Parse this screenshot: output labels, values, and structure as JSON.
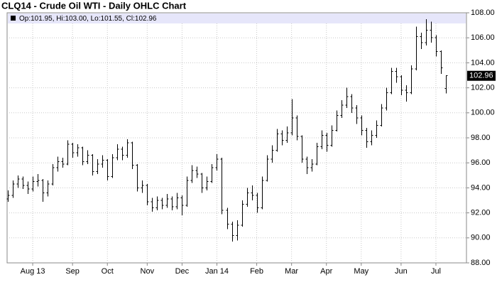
{
  "chart_data": {
    "type": "ohlc",
    "title": "CLQ14 - Crude Oil WTI - Daily OHLC Chart",
    "legend_text": "Op:101.95, Hi:103.00, Lo:101.55, Cl:102.96",
    "categories": [
      null,
      null,
      null,
      null,
      null,
      "Aug 13",
      null,
      null,
      null,
      null,
      null,
      null,
      null,
      "Sep",
      null,
      null,
      null,
      null,
      null,
      null,
      "Oct",
      null,
      null,
      null,
      null,
      null,
      null,
      null,
      "Nov",
      null,
      null,
      null,
      null,
      null,
      null,
      "Dec",
      null,
      null,
      null,
      null,
      null,
      null,
      "Jan 14",
      null,
      null,
      null,
      null,
      null,
      null,
      null,
      "Feb",
      null,
      null,
      null,
      null,
      null,
      null,
      "Mar",
      null,
      null,
      null,
      null,
      null,
      null,
      "Apr",
      null,
      null,
      null,
      null,
      null,
      null,
      "May",
      null,
      null,
      null,
      null,
      null,
      null,
      null,
      "Jun",
      null,
      null,
      null,
      null,
      null,
      null,
      "Jul",
      null,
      null
    ],
    "open": [
      93.1,
      93.4,
      94.3,
      94.7,
      94.2,
      93.9,
      94.5,
      94.6,
      93.6,
      94.3,
      95.6,
      96.1,
      95.9,
      97.5,
      96.8,
      97.2,
      96.1,
      96.6,
      95.3,
      95.9,
      96.2,
      94.9,
      96.4,
      97.1,
      96.6,
      97.6,
      95.8,
      94.0,
      94.2,
      92.9,
      92.4,
      93.0,
      92.6,
      93.1,
      92.5,
      93.2,
      92.6,
      94.6,
      95.4,
      95.1,
      94.0,
      94.5,
      95.6,
      96.3,
      92.2,
      91.1,
      90.2,
      91.0,
      92.7,
      93.6,
      93.4,
      92.4,
      94.6,
      96.3,
      97.0,
      98.3,
      97.8,
      98.4,
      99.6,
      98.1,
      96.3,
      95.6,
      95.9,
      97.3,
      98.2,
      97.4,
      98.6,
      99.8,
      100.6,
      101.3,
      100.4,
      99.6,
      98.6,
      97.7,
      98.2,
      99.0,
      100.4,
      101.6,
      103.3,
      102.9,
      101.8,
      101.6,
      103.5,
      106.1,
      105.6,
      106.6,
      106.0,
      104.9,
      101.95
    ],
    "high": [
      93.8,
      94.6,
      95.0,
      94.9,
      94.5,
      94.9,
      95.1,
      94.7,
      94.6,
      95.9,
      96.5,
      96.4,
      97.8,
      97.6,
      97.5,
      97.3,
      97.0,
      96.7,
      96.3,
      96.6,
      96.3,
      96.7,
      97.5,
      97.3,
      97.9,
      97.7,
      95.9,
      94.6,
      94.3,
      93.2,
      93.3,
      93.2,
      93.5,
      93.3,
      93.6,
      93.4,
      94.9,
      95.8,
      95.7,
      95.2,
      94.9,
      95.9,
      96.7,
      96.4,
      92.4,
      91.3,
      91.4,
      93.0,
      94.0,
      94.2,
      93.6,
      94.9,
      96.6,
      97.4,
      98.7,
      98.6,
      98.9,
      101.1,
      99.8,
      98.2,
      96.5,
      96.3,
      97.6,
      98.6,
      98.4,
      99.0,
      100.2,
      101.0,
      102.0,
      101.5,
      100.6,
      99.8,
      98.8,
      98.6,
      99.4,
      100.7,
      102.0,
      103.6,
      103.6,
      103.0,
      102.2,
      103.8,
      106.9,
      106.4,
      107.5,
      107.3,
      106.2,
      105.0,
      103.0
    ],
    "low": [
      92.9,
      93.2,
      94.0,
      93.9,
      93.5,
      93.7,
      94.1,
      92.9,
      93.3,
      94.2,
      95.3,
      95.6,
      95.8,
      96.4,
      96.5,
      95.8,
      95.9,
      95.0,
      95.1,
      95.6,
      94.6,
      94.8,
      96.2,
      96.2,
      96.4,
      95.5,
      93.7,
      93.6,
      92.6,
      92.1,
      92.2,
      92.3,
      92.4,
      92.2,
      92.3,
      91.8,
      92.5,
      94.4,
      94.8,
      93.6,
      93.8,
      94.4,
      95.4,
      91.9,
      90.7,
      89.7,
      89.8,
      90.9,
      92.5,
      93.0,
      92.0,
      92.3,
      94.5,
      96.0,
      96.9,
      97.4,
      97.6,
      98.2,
      97.8,
      96.0,
      95.1,
      95.3,
      95.8,
      97.1,
      96.9,
      97.3,
      98.5,
      99.6,
      100.4,
      100.0,
      99.1,
      98.2,
      97.2,
      97.4,
      98.0,
      98.9,
      100.2,
      101.5,
      102.4,
      101.4,
      100.9,
      101.5,
      103.4,
      105.1,
      105.4,
      105.6,
      104.5,
      103.1,
      101.55
    ],
    "close": [
      93.4,
      94.3,
      94.7,
      94.2,
      93.9,
      94.5,
      94.6,
      93.6,
      94.3,
      95.6,
      96.1,
      95.9,
      97.5,
      96.8,
      97.2,
      96.1,
      96.6,
      95.3,
      95.9,
      96.2,
      94.9,
      96.4,
      97.1,
      96.6,
      97.6,
      95.8,
      94.0,
      94.2,
      92.9,
      92.4,
      93.0,
      92.6,
      93.1,
      92.5,
      93.2,
      92.6,
      94.6,
      95.4,
      95.1,
      94.0,
      94.5,
      95.6,
      96.3,
      92.2,
      91.1,
      90.2,
      91.0,
      92.7,
      93.6,
      93.4,
      92.4,
      94.6,
      96.3,
      97.0,
      98.3,
      97.8,
      98.4,
      99.6,
      98.1,
      96.3,
      95.6,
      95.9,
      97.3,
      98.2,
      97.4,
      98.6,
      99.8,
      100.6,
      101.3,
      100.4,
      99.6,
      98.6,
      97.7,
      98.2,
      99.0,
      100.4,
      101.6,
      103.3,
      102.9,
      101.8,
      101.6,
      103.5,
      106.1,
      105.6,
      106.6,
      106.0,
      104.9,
      103.6,
      102.96
    ],
    "ylim": [
      88,
      108
    ],
    "yticks": [
      {
        "value": 88,
        "label": "88.00"
      },
      {
        "value": 90,
        "label": "90.00"
      },
      {
        "value": 92,
        "label": "92.00"
      },
      {
        "value": 94,
        "label": "94.00"
      },
      {
        "value": 96,
        "label": "96.00"
      },
      {
        "value": 98,
        "label": "98.00"
      },
      {
        "value": 100,
        "label": "100.00"
      },
      {
        "value": 102,
        "label": "102.00"
      },
      {
        "value": 104,
        "label": "104.00"
      },
      {
        "value": 106,
        "label": "106.00"
      },
      {
        "value": 108,
        "label": "108.00"
      }
    ],
    "grid": true,
    "color": "#000000"
  }
}
